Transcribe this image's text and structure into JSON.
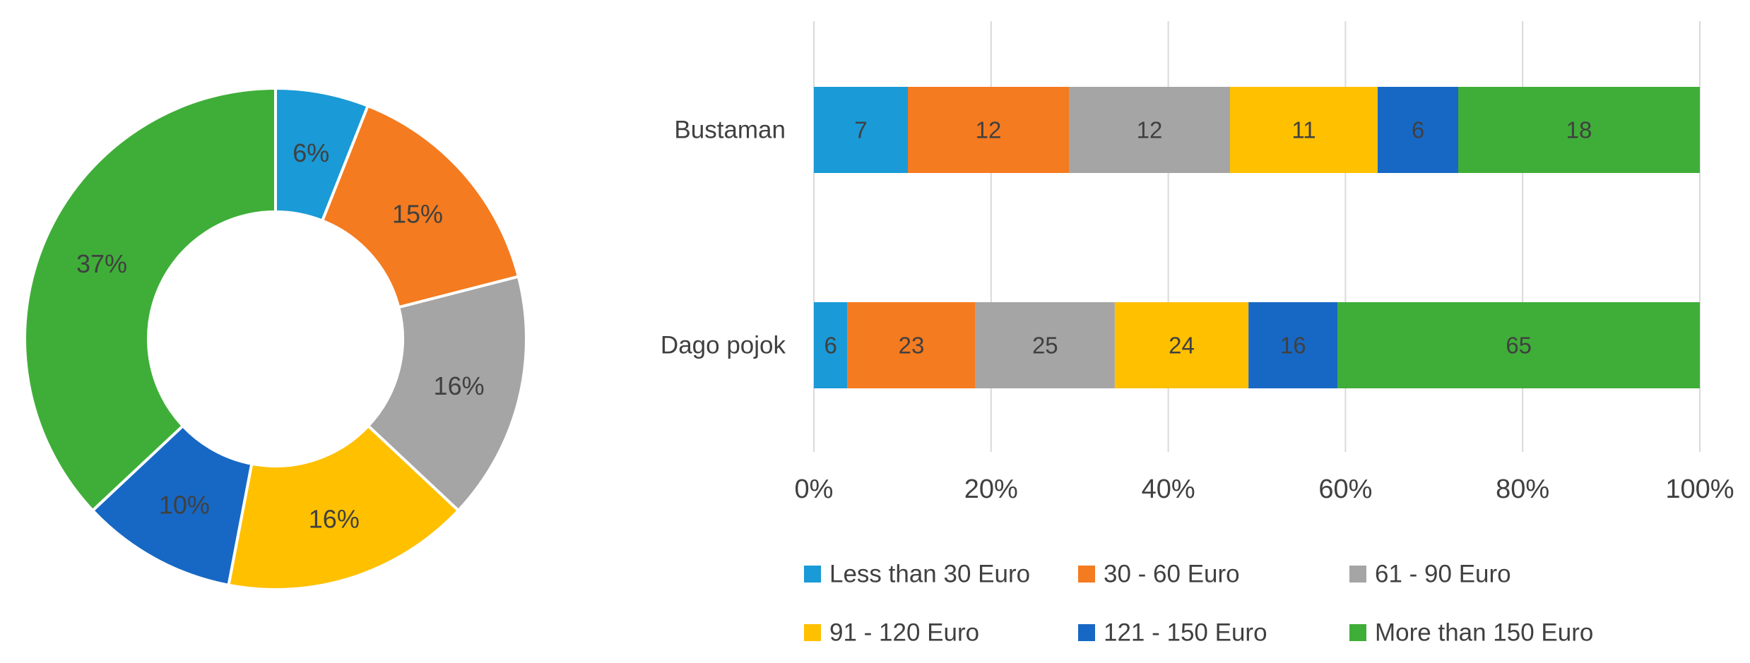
{
  "colors": {
    "less_than_30": "#1a9ad6",
    "30_60": "#f47b20",
    "61_90": "#a5a5a5",
    "91_120": "#ffc000",
    "121_150": "#1768c4",
    "more_than_150": "#3fae38",
    "grid": "#d9d9d9",
    "label_text": "#404040"
  },
  "chart_data": [
    {
      "type": "pie",
      "variant": "donut",
      "slices": [
        {
          "key": "less_than_30",
          "value": 6,
          "label": "6%"
        },
        {
          "key": "30_60",
          "value": 15,
          "label": "15%"
        },
        {
          "key": "61_90",
          "value": 16,
          "label": "16%"
        },
        {
          "key": "91_120",
          "value": 16,
          "label": "16%"
        },
        {
          "key": "121_150",
          "value": 10,
          "label": "10%"
        },
        {
          "key": "more_than_150",
          "value": 37,
          "label": "37%"
        }
      ]
    },
    {
      "type": "bar",
      "orientation": "horizontal",
      "stacked": "percent",
      "categories": [
        "Bustaman",
        "Dago pojok"
      ],
      "series": [
        {
          "key": "less_than_30",
          "name": "Less than 30 Euro",
          "values": [
            7,
            6
          ]
        },
        {
          "key": "30_60",
          "name": "30 - 60 Euro",
          "values": [
            12,
            23
          ]
        },
        {
          "key": "61_90",
          "name": "61 - 90 Euro",
          "values": [
            12,
            25
          ]
        },
        {
          "key": "91_120",
          "name": "91 - 120 Euro",
          "values": [
            11,
            24
          ]
        },
        {
          "key": "121_150",
          "name": "121 - 150 Euro",
          "values": [
            6,
            16
          ]
        },
        {
          "key": "more_than_150",
          "name": "More than  150 Euro",
          "values": [
            18,
            65
          ]
        }
      ],
      "x_ticks": [
        "0%",
        "20%",
        "40%",
        "60%",
        "80%",
        "100%"
      ],
      "xlim": [
        0,
        100
      ],
      "grid": true,
      "legend_position": "bottom"
    }
  ]
}
